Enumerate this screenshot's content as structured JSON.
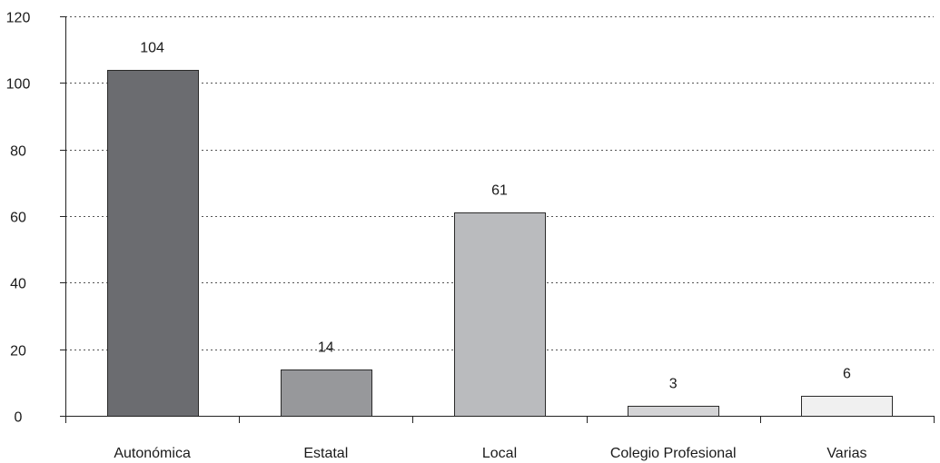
{
  "chart_data": {
    "type": "bar",
    "categories": [
      "Autonómica",
      "Estatal",
      "Local",
      "Colegio Profesional",
      "Varias"
    ],
    "values": [
      104,
      14,
      61,
      3,
      6
    ],
    "data_labels": [
      "104",
      "14",
      "61",
      "3",
      "6"
    ],
    "colors": [
      "#6b6c70",
      "#97989b",
      "#babbbe",
      "#d4d4d6",
      "#f0f0f0"
    ],
    "ylim": [
      0,
      120
    ],
    "yticks": [
      0,
      20,
      40,
      60,
      80,
      100,
      120
    ],
    "ytick_labels": [
      "0",
      "20",
      "40",
      "60",
      "80",
      "100",
      "120"
    ],
    "grid": "horizontal dotted",
    "legend": "none",
    "title": "",
    "xlabel": "",
    "ylabel": ""
  }
}
